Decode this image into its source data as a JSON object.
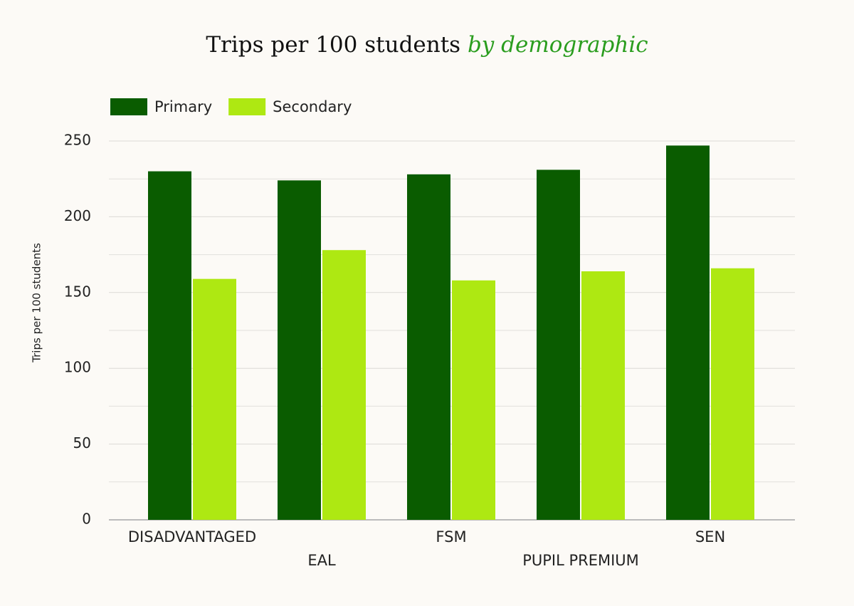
{
  "chart_data": {
    "type": "bar",
    "title": "Trips per 100 students",
    "title_highlight": "by demographic",
    "title_highlight_color": "#2a9d1e",
    "y_label": "Trips per 100 students",
    "categories": [
      "DISADVANTAGED",
      "EAL",
      "FSM",
      "PUPIL PREMIUM",
      "SEN"
    ],
    "series": [
      {
        "name": "Primary",
        "color": "#0a5c00",
        "values": [
          230,
          224,
          228,
          231,
          247
        ]
      },
      {
        "name": "Secondary",
        "color": "#aee812",
        "values": [
          159,
          178,
          158,
          164,
          166
        ]
      }
    ],
    "ylim": [
      0,
      250
    ],
    "yticks": [
      0,
      50,
      100,
      150,
      200,
      250
    ],
    "minor_yticks": [
      25,
      75,
      125,
      175,
      225
    ],
    "grid": true,
    "legend": "top-left"
  }
}
